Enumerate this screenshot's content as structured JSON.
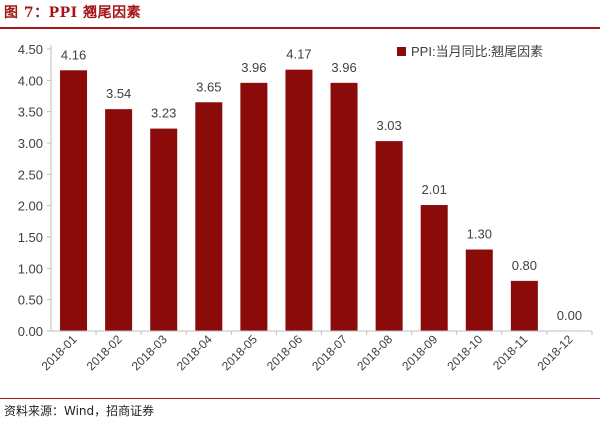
{
  "figure": {
    "title": "图 7：PPI 翘尾因素",
    "source": "资料来源：Wind，招商证券"
  },
  "colors": {
    "bar": "#8b0a0a",
    "accent": "#a4161a",
    "axis": "#bfbfbf",
    "text": "#404040"
  },
  "chart_data": {
    "type": "bar",
    "categories": [
      "2018-01",
      "2018-02",
      "2018-03",
      "2018-04",
      "2018-05",
      "2018-06",
      "2018-07",
      "2018-08",
      "2018-09",
      "2018-10",
      "2018-11",
      "2018-12"
    ],
    "series": [
      {
        "name": "PPI:当月同比:翘尾因素",
        "values": [
          4.16,
          3.54,
          3.23,
          3.65,
          3.96,
          4.17,
          3.96,
          3.03,
          2.01,
          1.3,
          0.8,
          0.0
        ]
      }
    ],
    "data_labels": [
      "4.16",
      "3.54",
      "3.23",
      "3.65",
      "3.96",
      "4.17",
      "3.96",
      "3.03",
      "2.01",
      "1.30",
      "0.80",
      "0.00"
    ],
    "y_ticks": [
      "0.00",
      "0.50",
      "1.00",
      "1.50",
      "2.00",
      "2.50",
      "3.00",
      "3.50",
      "4.00",
      "4.50"
    ],
    "ylim": [
      0,
      4.5
    ],
    "grid": false,
    "legend_position": "top-right",
    "xlabel": "",
    "ylabel": ""
  }
}
